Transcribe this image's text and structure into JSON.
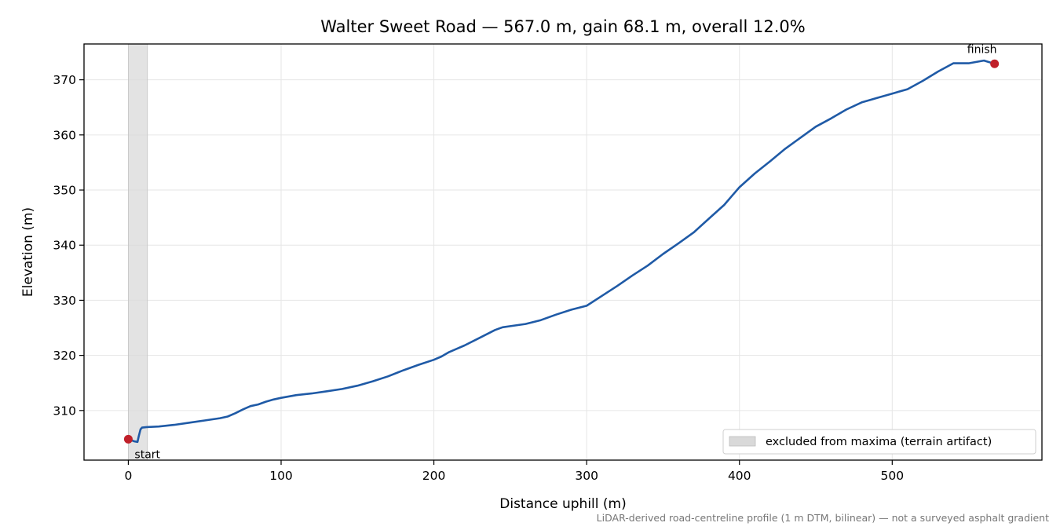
{
  "chart_data": {
    "type": "line",
    "title": "Walter Sweet Road — 567.0 m, gain 68.1 m, overall 12.0%",
    "xlabel": "Distance uphill (m)",
    "ylabel": "Elevation (m)",
    "xlim": [
      -29,
      598
    ],
    "ylim": [
      301,
      376.5
    ],
    "xticks": [
      0,
      100,
      200,
      300,
      400,
      500
    ],
    "yticks": [
      310,
      320,
      330,
      340,
      350,
      360,
      370
    ],
    "grid": true,
    "legend_position": "lower-right",
    "excluded_region": {
      "x": [
        0,
        12.5
      ],
      "legend_label": "excluded from maxima (terrain artifact)"
    },
    "series": [
      {
        "x": [
          0,
          2,
          4,
          6,
          7,
          8,
          9,
          12,
          20,
          30,
          40,
          50,
          60,
          65,
          70,
          75,
          80,
          85,
          90,
          95,
          100,
          110,
          120,
          130,
          140,
          150,
          160,
          170,
          180,
          190,
          200,
          205,
          210,
          215,
          220,
          230,
          240,
          245,
          250,
          260,
          270,
          275,
          280,
          290,
          300,
          310,
          320,
          330,
          340,
          350,
          360,
          370,
          380,
          390,
          395,
          400,
          410,
          420,
          430,
          440,
          450,
          460,
          470,
          480,
          490,
          500,
          510,
          520,
          530,
          540,
          550,
          560,
          567
        ],
        "y": [
          304.8,
          304.6,
          304.4,
          304.3,
          305.5,
          306.6,
          306.9,
          307.0,
          307.1,
          307.4,
          307.8,
          308.2,
          308.6,
          308.9,
          309.5,
          310.2,
          310.8,
          311.1,
          311.6,
          312.0,
          312.3,
          312.8,
          313.1,
          313.5,
          313.9,
          314.5,
          315.3,
          316.2,
          317.3,
          318.3,
          319.2,
          319.8,
          320.6,
          321.2,
          321.8,
          323.2,
          324.6,
          325.1,
          325.3,
          325.7,
          326.4,
          326.9,
          327.4,
          328.3,
          329.0,
          330.8,
          332.6,
          334.5,
          336.3,
          338.4,
          340.3,
          342.3,
          344.8,
          347.3,
          348.9,
          350.5,
          353.0,
          355.2,
          357.5,
          359.5,
          361.5,
          363.0,
          364.6,
          365.9,
          366.7,
          367.5,
          368.3,
          369.8,
          371.5,
          373.0,
          373.0,
          373.5,
          372.9
        ],
        "color": "#1f5aa6"
      }
    ],
    "points": [
      {
        "label": "start",
        "x": 0,
        "y": 304.8,
        "color": "#c0202a"
      },
      {
        "label": "finish",
        "x": 567,
        "y": 372.9,
        "color": "#c0202a"
      }
    ],
    "footnote": "LiDAR-derived road-centreline profile (1 m DTM, bilinear) — not a surveyed asphalt gradient"
  }
}
